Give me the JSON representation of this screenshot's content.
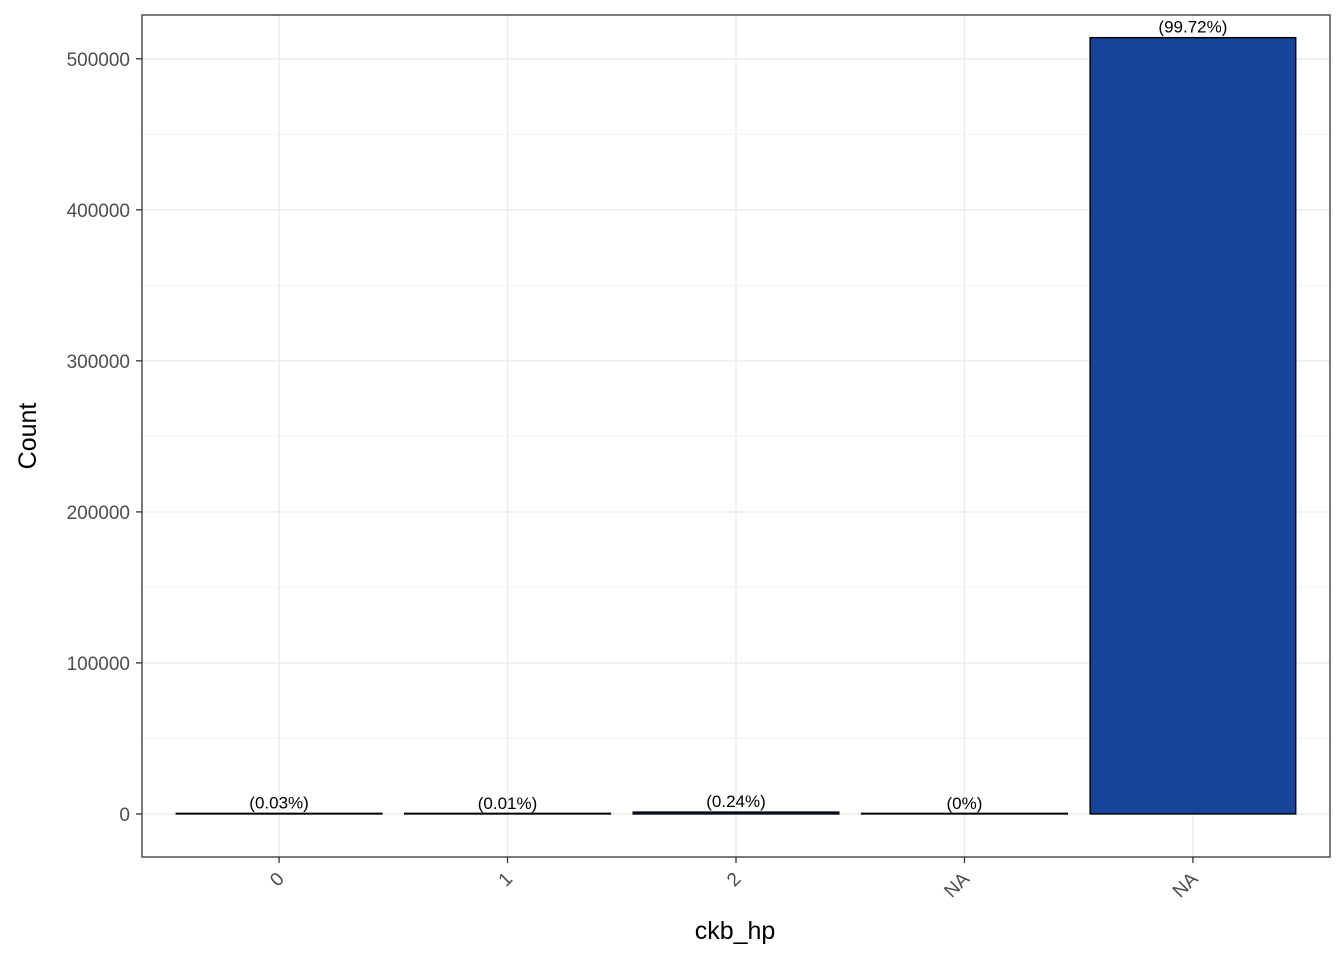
{
  "chart_data": {
    "type": "bar",
    "categories": [
      "0",
      "1",
      "2",
      "NA",
      "NA"
    ],
    "values": [
      155,
      51,
      1240,
      0,
      514000
    ],
    "labels": [
      "(0.03%)",
      "(0.01%)",
      "(0.24%)",
      "(0%)",
      "(99.72%)"
    ],
    "xlabel": "ckb_hp",
    "ylabel": "Count",
    "ylim": [
      -28500,
      529000
    ],
    "yticks": [
      0,
      100000,
      200000,
      300000,
      400000,
      500000
    ],
    "ytick_labels": [
      "0",
      "100000",
      "200000",
      "300000",
      "400000",
      "500000"
    ],
    "grid": true,
    "bar_fill": "#17439B",
    "bar_stroke": "#000000"
  }
}
